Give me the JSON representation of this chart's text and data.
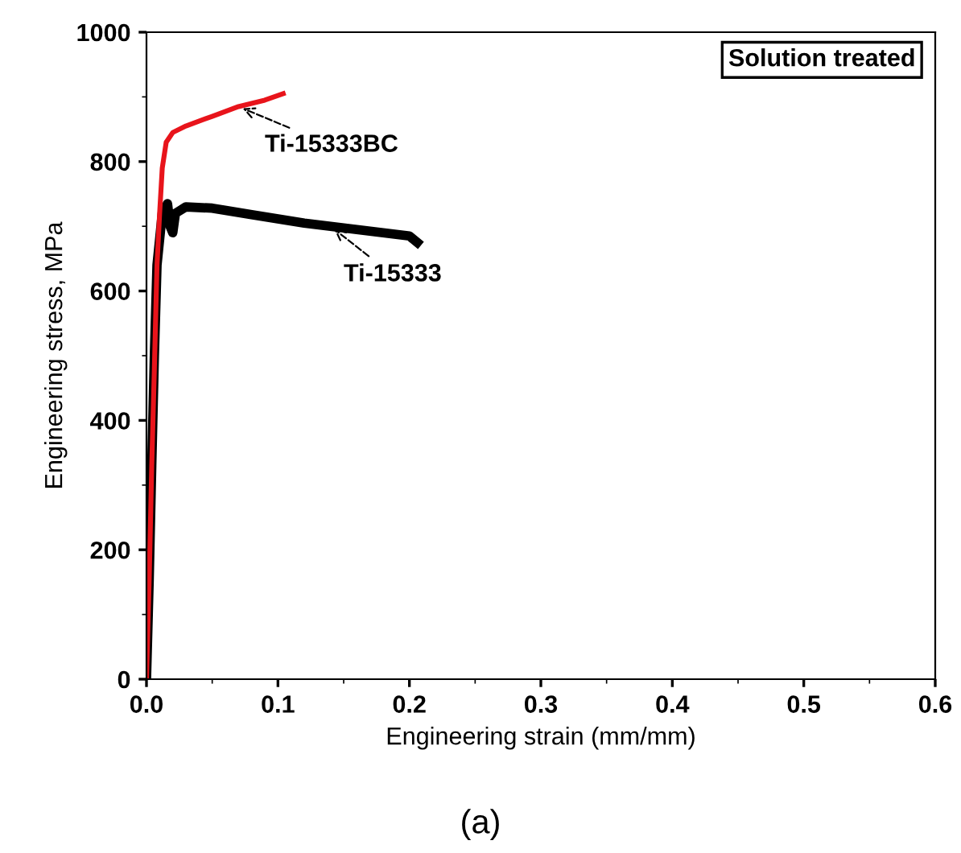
{
  "chart_data": {
    "type": "line",
    "xlabel": "Engineering strain (mm/mm)",
    "ylabel": "Engineering stress, MPa",
    "series": [
      {
        "color": "#000000",
        "x": [
          0,
          0.002,
          0.004,
          0.006,
          0.008,
          0.012,
          0.016,
          0.018,
          0.02,
          0.022,
          0.03,
          0.05,
          0.08,
          0.12,
          0.16,
          0.2,
          0.206
        ],
        "values": [
          0,
          150,
          330,
          500,
          640,
          720,
          735,
          700,
          690,
          720,
          730,
          728,
          718,
          705,
          695,
          685,
          675
        ]
      },
      {
        "color": "#e8141b",
        "x": [
          0,
          0.002,
          0.004,
          0.006,
          0.008,
          0.01,
          0.012,
          0.015,
          0.02,
          0.03,
          0.05,
          0.07,
          0.09,
          0.104
        ],
        "values": [
          0,
          150,
          330,
          480,
          640,
          720,
          790,
          830,
          845,
          855,
          870,
          885,
          895,
          905
        ]
      }
    ],
    "annotations": [
      {
        "text": "Ti-15333BC",
        "x": 0.07,
        "y": 885
      },
      {
        "text": "Ti-15333",
        "x": 0.14,
        "y": 700
      },
      "Solution treated",
      "(a)"
    ],
    "xlim": [
      0,
      0.6
    ],
    "ylim": [
      0,
      1000
    ],
    "xticks": [
      {
        "value": 0,
        "label": "0.0"
      },
      {
        "value": 0.1,
        "label": "0.1"
      },
      {
        "value": 0.2,
        "label": "0.2"
      },
      {
        "value": 0.3,
        "label": "0.3"
      },
      {
        "value": 0.4,
        "label": "0.4"
      },
      {
        "value": 0.5,
        "label": "0.5"
      },
      {
        "value": 0.6,
        "label": "0.6"
      }
    ],
    "yticks": [
      0,
      200,
      400,
      600,
      800,
      1000
    ],
    "grid": false,
    "legend": false,
    "line_style": "solid",
    "marker": "none"
  }
}
